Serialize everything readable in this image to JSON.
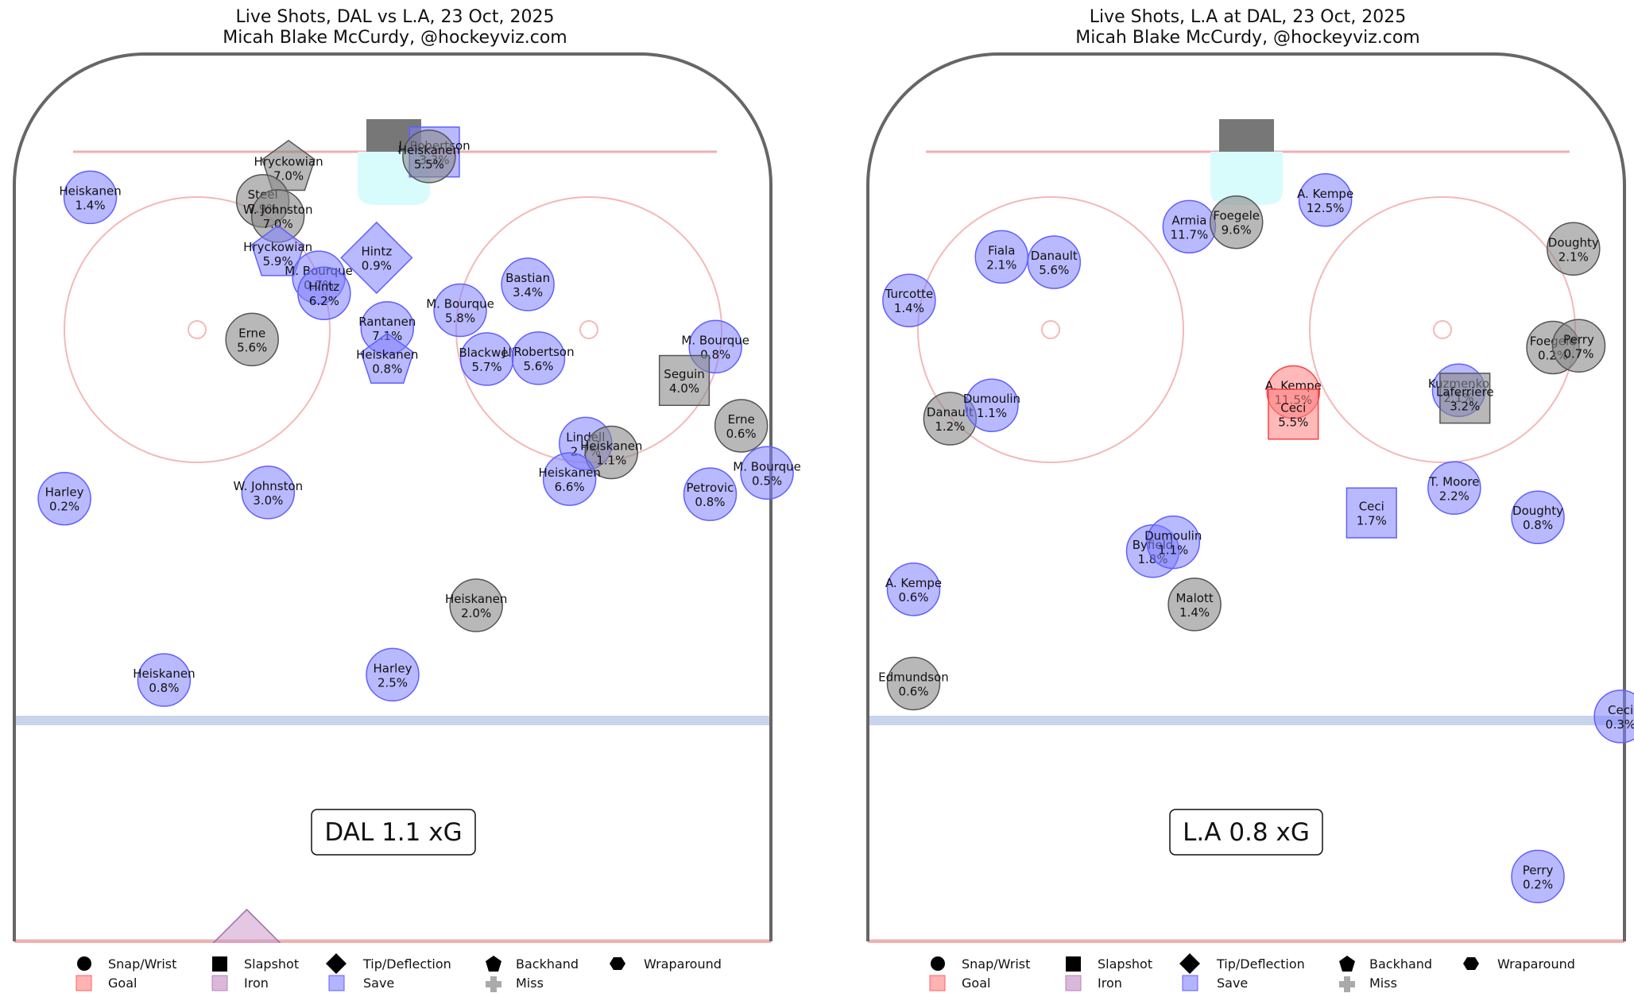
{
  "colors": {
    "goal": "#ff8080",
    "save": "#8080ff",
    "miss": "#888888",
    "iron": "#cc99cc",
    "board": "#666666",
    "red_line": "#f0b0b0",
    "blue_line": "#c8d4ec",
    "crease": "#d8fcfc",
    "net": "#777777"
  },
  "legend": {
    "shot_types": [
      "Snap/Wrist",
      "Slapshot",
      "Tip/Deflection",
      "Backhand",
      "Wraparound"
    ],
    "outcomes": [
      "Goal",
      "Iron",
      "Save",
      "Miss"
    ]
  },
  "chart_data": [
    {
      "type": "scatter",
      "title": "Live Shots, DAL vs L.A, 23 Oct, 2025",
      "subtitle": "Micah Blake McCurdy, @hockeyviz.com",
      "total_label": "DAL 1.1 xG",
      "axes": "none",
      "x_units": "feet across ice (0 = center, -42.5 to 42.5)",
      "y_units": "feet from center ice toward net",
      "xlim": [
        -42.5,
        42.5
      ],
      "ylim": [
        0,
        100
      ],
      "shots": [
        {
          "player": "Heiskanen",
          "xg": "1.4%",
          "type": "wrist",
          "outcome": "save",
          "x": -34.0,
          "y": 83.7
        },
        {
          "player": "Hryckowian",
          "xg": "7.0%",
          "type": "backhand",
          "outcome": "miss",
          "x": -11.7,
          "y": 87.0
        },
        {
          "player": "Steel",
          "xg": "7.9%",
          "type": "wrist",
          "outcome": "miss",
          "x": -14.6,
          "y": 83.3
        },
        {
          "player": "W. Johnston",
          "xg": "7.0%",
          "type": "wrist",
          "outcome": "miss",
          "x": -12.9,
          "y": 81.6
        },
        {
          "player": "Hryckowian",
          "xg": "5.9%",
          "type": "backhand",
          "outcome": "save",
          "x": -12.9,
          "y": 77.4
        },
        {
          "player": "J. Robertson",
          "xg": "3.3%",
          "type": "slapshot",
          "outcome": "save",
          "x": 4.7,
          "y": 88.8
        },
        {
          "player": "Heiskanen",
          "xg": "5.5%",
          "type": "wrist",
          "outcome": "miss",
          "x": 4.1,
          "y": 88.3
        },
        {
          "player": "Hintz",
          "xg": "0.9%",
          "type": "tip",
          "outcome": "save",
          "x": -1.8,
          "y": 76.9
        },
        {
          "player": "M. Bourque",
          "xg": "0.7%",
          "type": "wrist",
          "outcome": "save",
          "x": -8.3,
          "y": 74.7
        },
        {
          "player": "Hintz",
          "xg": "6.2%",
          "type": "wrist",
          "outcome": "save",
          "x": -7.7,
          "y": 72.9
        },
        {
          "player": "Rantanen",
          "xg": "7.1%",
          "type": "wrist",
          "outcome": "save",
          "x": -0.6,
          "y": 69.0
        },
        {
          "player": "Heiskanen",
          "xg": "0.8%",
          "type": "backhand",
          "outcome": "save",
          "x": -0.6,
          "y": 65.3
        },
        {
          "player": "Erne",
          "xg": "5.6%",
          "type": "wrist",
          "outcome": "miss",
          "x": -15.8,
          "y": 67.7
        },
        {
          "player": "M. Bourque",
          "xg": "5.8%",
          "type": "wrist",
          "outcome": "save",
          "x": 7.6,
          "y": 71.0
        },
        {
          "player": "Bastian",
          "xg": "3.4%",
          "type": "wrist",
          "outcome": "save",
          "x": 15.2,
          "y": 73.9
        },
        {
          "player": "Blackwell",
          "xg": "5.7%",
          "type": "wrist",
          "outcome": "save",
          "x": 10.6,
          "y": 65.5
        },
        {
          "player": "J. Robertson",
          "xg": "5.6%",
          "type": "wrist",
          "outcome": "save",
          "x": 16.4,
          "y": 65.6
        },
        {
          "player": "M. Bourque",
          "xg": "0.8%",
          "type": "wrist",
          "outcome": "save",
          "x": 36.3,
          "y": 66.9
        },
        {
          "player": "Seguin",
          "xg": "4.0%",
          "type": "slapshot",
          "outcome": "miss",
          "x": 32.8,
          "y": 63.1
        },
        {
          "player": "Lindell",
          "xg": "2.7%",
          "type": "wrist",
          "outcome": "save",
          "x": 21.7,
          "y": 56.0
        },
        {
          "player": "Heiskanen",
          "xg": "1.1%",
          "type": "wrist",
          "outcome": "miss",
          "x": 24.6,
          "y": 55.0
        },
        {
          "player": "Heiskanen",
          "xg": "6.6%",
          "type": "wrist",
          "outcome": "save",
          "x": 19.9,
          "y": 52.0
        },
        {
          "player": "Erne",
          "xg": "0.6%",
          "type": "wrist",
          "outcome": "miss",
          "x": 39.2,
          "y": 58.0
        },
        {
          "player": "M. Bourque",
          "xg": "0.5%",
          "type": "wrist",
          "outcome": "save",
          "x": 42.1,
          "y": 52.7
        },
        {
          "player": "Petrovic",
          "xg": "0.8%",
          "type": "wrist",
          "outcome": "save",
          "x": 35.7,
          "y": 50.3
        },
        {
          "player": "Harley",
          "xg": "0.2%",
          "type": "wrist",
          "outcome": "save",
          "x": -36.9,
          "y": 49.8
        },
        {
          "player": "W. Johnston",
          "xg": "3.0%",
          "type": "wrist",
          "outcome": "save",
          "x": -14.0,
          "y": 50.5
        },
        {
          "player": "Heiskanen",
          "xg": "2.0%",
          "type": "wrist",
          "outcome": "miss",
          "x": 9.4,
          "y": 37.8
        },
        {
          "player": "Heiskanen",
          "xg": "0.8%",
          "type": "wrist",
          "outcome": "save",
          "x": -25.7,
          "y": 29.4
        },
        {
          "player": "Harley",
          "xg": "2.5%",
          "type": "wrist",
          "outcome": "save",
          "x": 0.0,
          "y": 30.0
        },
        {
          "player": "",
          "xg": "",
          "type": "tip",
          "outcome": "iron",
          "x": -16.4,
          "y": -0.4
        }
      ]
    },
    {
      "type": "scatter",
      "title": "Live Shots, L.A at DAL, 23 Oct, 2025",
      "subtitle": "Micah Blake McCurdy, @hockeyviz.com",
      "total_label": "L.A 0.8 xG",
      "axes": "none",
      "x_units": "feet across ice (0 = center, -42.5 to 42.5)",
      "y_units": "feet from center ice toward net",
      "xlim": [
        -42.5,
        42.5
      ],
      "ylim": [
        0,
        100
      ],
      "shots": [
        {
          "player": "Armia",
          "xg": "11.7%",
          "type": "wrist",
          "outcome": "save",
          "x": -6.4,
          "y": 80.4
        },
        {
          "player": "Foegele",
          "xg": "9.6%",
          "type": "wrist",
          "outcome": "miss",
          "x": -1.1,
          "y": 80.9
        },
        {
          "player": "A. Kempe",
          "xg": "12.5%",
          "type": "wrist",
          "outcome": "save",
          "x": 8.9,
          "y": 83.4
        },
        {
          "player": "Fiala",
          "xg": "2.1%",
          "type": "wrist",
          "outcome": "save",
          "x": -27.5,
          "y": 77.0
        },
        {
          "player": "Danault",
          "xg": "5.6%",
          "type": "wrist",
          "outcome": "save",
          "x": -21.6,
          "y": 76.4
        },
        {
          "player": "Turcotte",
          "xg": "1.4%",
          "type": "wrist",
          "outcome": "save",
          "x": -37.9,
          "y": 72.1
        },
        {
          "player": "Doughty",
          "xg": "2.1%",
          "type": "wrist",
          "outcome": "miss",
          "x": 36.8,
          "y": 77.9
        },
        {
          "player": "Foegele",
          "xg": "0.2%",
          "type": "wrist",
          "outcome": "miss",
          "x": 34.5,
          "y": 66.8
        },
        {
          "player": "Perry",
          "xg": "0.7%",
          "type": "wrist",
          "outcome": "miss",
          "x": 37.4,
          "y": 67.0
        },
        {
          "player": "Danault",
          "xg": "1.2%",
          "type": "wrist",
          "outcome": "miss",
          "x": -33.3,
          "y": 58.8
        },
        {
          "player": "Dumoulin",
          "xg": "1.1%",
          "type": "wrist",
          "outcome": "save",
          "x": -28.6,
          "y": 60.3
        },
        {
          "player": "A. Kempe",
          "xg": "11.5%",
          "type": "wrist",
          "outcome": "goal",
          "x": 5.3,
          "y": 61.8
        },
        {
          "player": "Ceci",
          "xg": "5.5%",
          "type": "slapshot",
          "outcome": "goal",
          "x": 5.3,
          "y": 59.3
        },
        {
          "player": "Kuzmenko",
          "xg": "2.1%",
          "type": "wrist",
          "outcome": "save",
          "x": 23.9,
          "y": 62.0
        },
        {
          "player": "Laferriere",
          "xg": "3.2%",
          "type": "slapshot",
          "outcome": "miss",
          "x": 24.6,
          "y": 61.1
        },
        {
          "player": "T. Moore",
          "xg": "2.2%",
          "type": "wrist",
          "outcome": "save",
          "x": 23.4,
          "y": 51.0
        },
        {
          "player": "Ceci",
          "xg": "1.7%",
          "type": "slapshot",
          "outcome": "save",
          "x": 14.1,
          "y": 48.2
        },
        {
          "player": "Doughty",
          "xg": "0.8%",
          "type": "wrist",
          "outcome": "save",
          "x": 32.8,
          "y": 47.7
        },
        {
          "player": "Byfield",
          "xg": "1.8%",
          "type": "wrist",
          "outcome": "save",
          "x": -10.5,
          "y": 43.9
        },
        {
          "player": "Dumoulin",
          "xg": "1.1%",
          "type": "wrist",
          "outcome": "save",
          "x": -8.2,
          "y": 44.9
        },
        {
          "player": "Malott",
          "xg": "1.4%",
          "type": "wrist",
          "outcome": "miss",
          "x": -5.8,
          "y": 37.9
        },
        {
          "player": "A. Kempe",
          "xg": "0.6%",
          "type": "wrist",
          "outcome": "save",
          "x": -37.4,
          "y": 39.6
        },
        {
          "player": "Edmundson",
          "xg": "0.6%",
          "type": "wrist",
          "outcome": "miss",
          "x": -37.4,
          "y": 29.0
        },
        {
          "player": "Ceci",
          "xg": "0.3%",
          "type": "wrist",
          "outcome": "save",
          "x": 42.1,
          "y": 25.3
        },
        {
          "player": "Perry",
          "xg": "0.2%",
          "type": "wrist",
          "outcome": "save",
          "x": 32.8,
          "y": 7.3
        }
      ]
    }
  ]
}
